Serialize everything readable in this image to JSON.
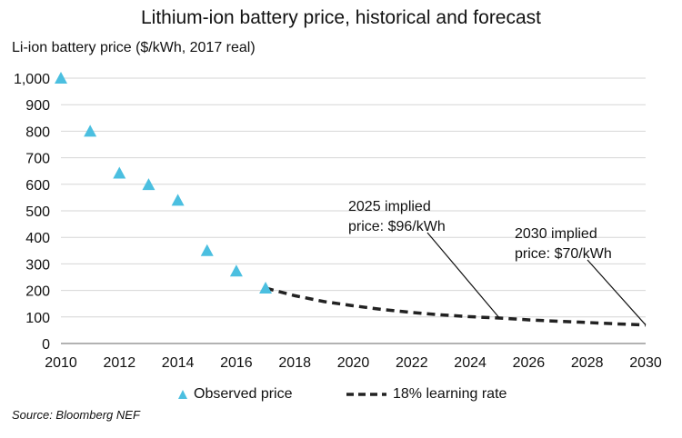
{
  "chart_data": {
    "type": "scatter",
    "title": "Lithium-ion battery price, historical and forecast",
    "ylabel": "Li-ion battery price ($/kWh, 2017 real)",
    "xlabel": "",
    "xlim": [
      2010,
      2030
    ],
    "ylim": [
      0,
      1000
    ],
    "x_ticks": [
      "2010",
      "2012",
      "2014",
      "2016",
      "2018",
      "2020",
      "2022",
      "2024",
      "2026",
      "2028",
      "2030"
    ],
    "y_ticks": [
      "0",
      "100",
      "200",
      "300",
      "400",
      "500",
      "600",
      "700",
      "800",
      "900",
      "1,000"
    ],
    "grid": "horizontal",
    "legend_position": "bottom",
    "series": [
      {
        "name": "Observed price",
        "style": "triangle-markers",
        "color": "#4bbfe0",
        "x": [
          2010,
          2011,
          2012,
          2013,
          2014,
          2015,
          2016,
          2017
        ],
        "y": [
          1000,
          800,
          642,
          599,
          540,
          350,
          273,
          209
        ]
      },
      {
        "name": "18% learning rate",
        "style": "dashed-line",
        "color": "#222222",
        "x": [
          2017,
          2018,
          2019,
          2020,
          2021,
          2022,
          2023,
          2024,
          2025,
          2026,
          2027,
          2028,
          2029,
          2030
        ],
        "y": [
          209,
          180,
          158,
          142,
          128,
          117,
          108,
          101,
          96,
          89,
          84,
          79,
          74,
          70
        ]
      }
    ],
    "annotations": [
      {
        "lines": [
          "2025 implied",
          "price: $96/kWh"
        ],
        "x": 2025,
        "y": 96
      },
      {
        "lines": [
          "2030 implied",
          "price: $70/kWh"
        ],
        "x": 2030,
        "y": 70
      }
    ]
  },
  "source": "Source: Bloomberg NEF"
}
